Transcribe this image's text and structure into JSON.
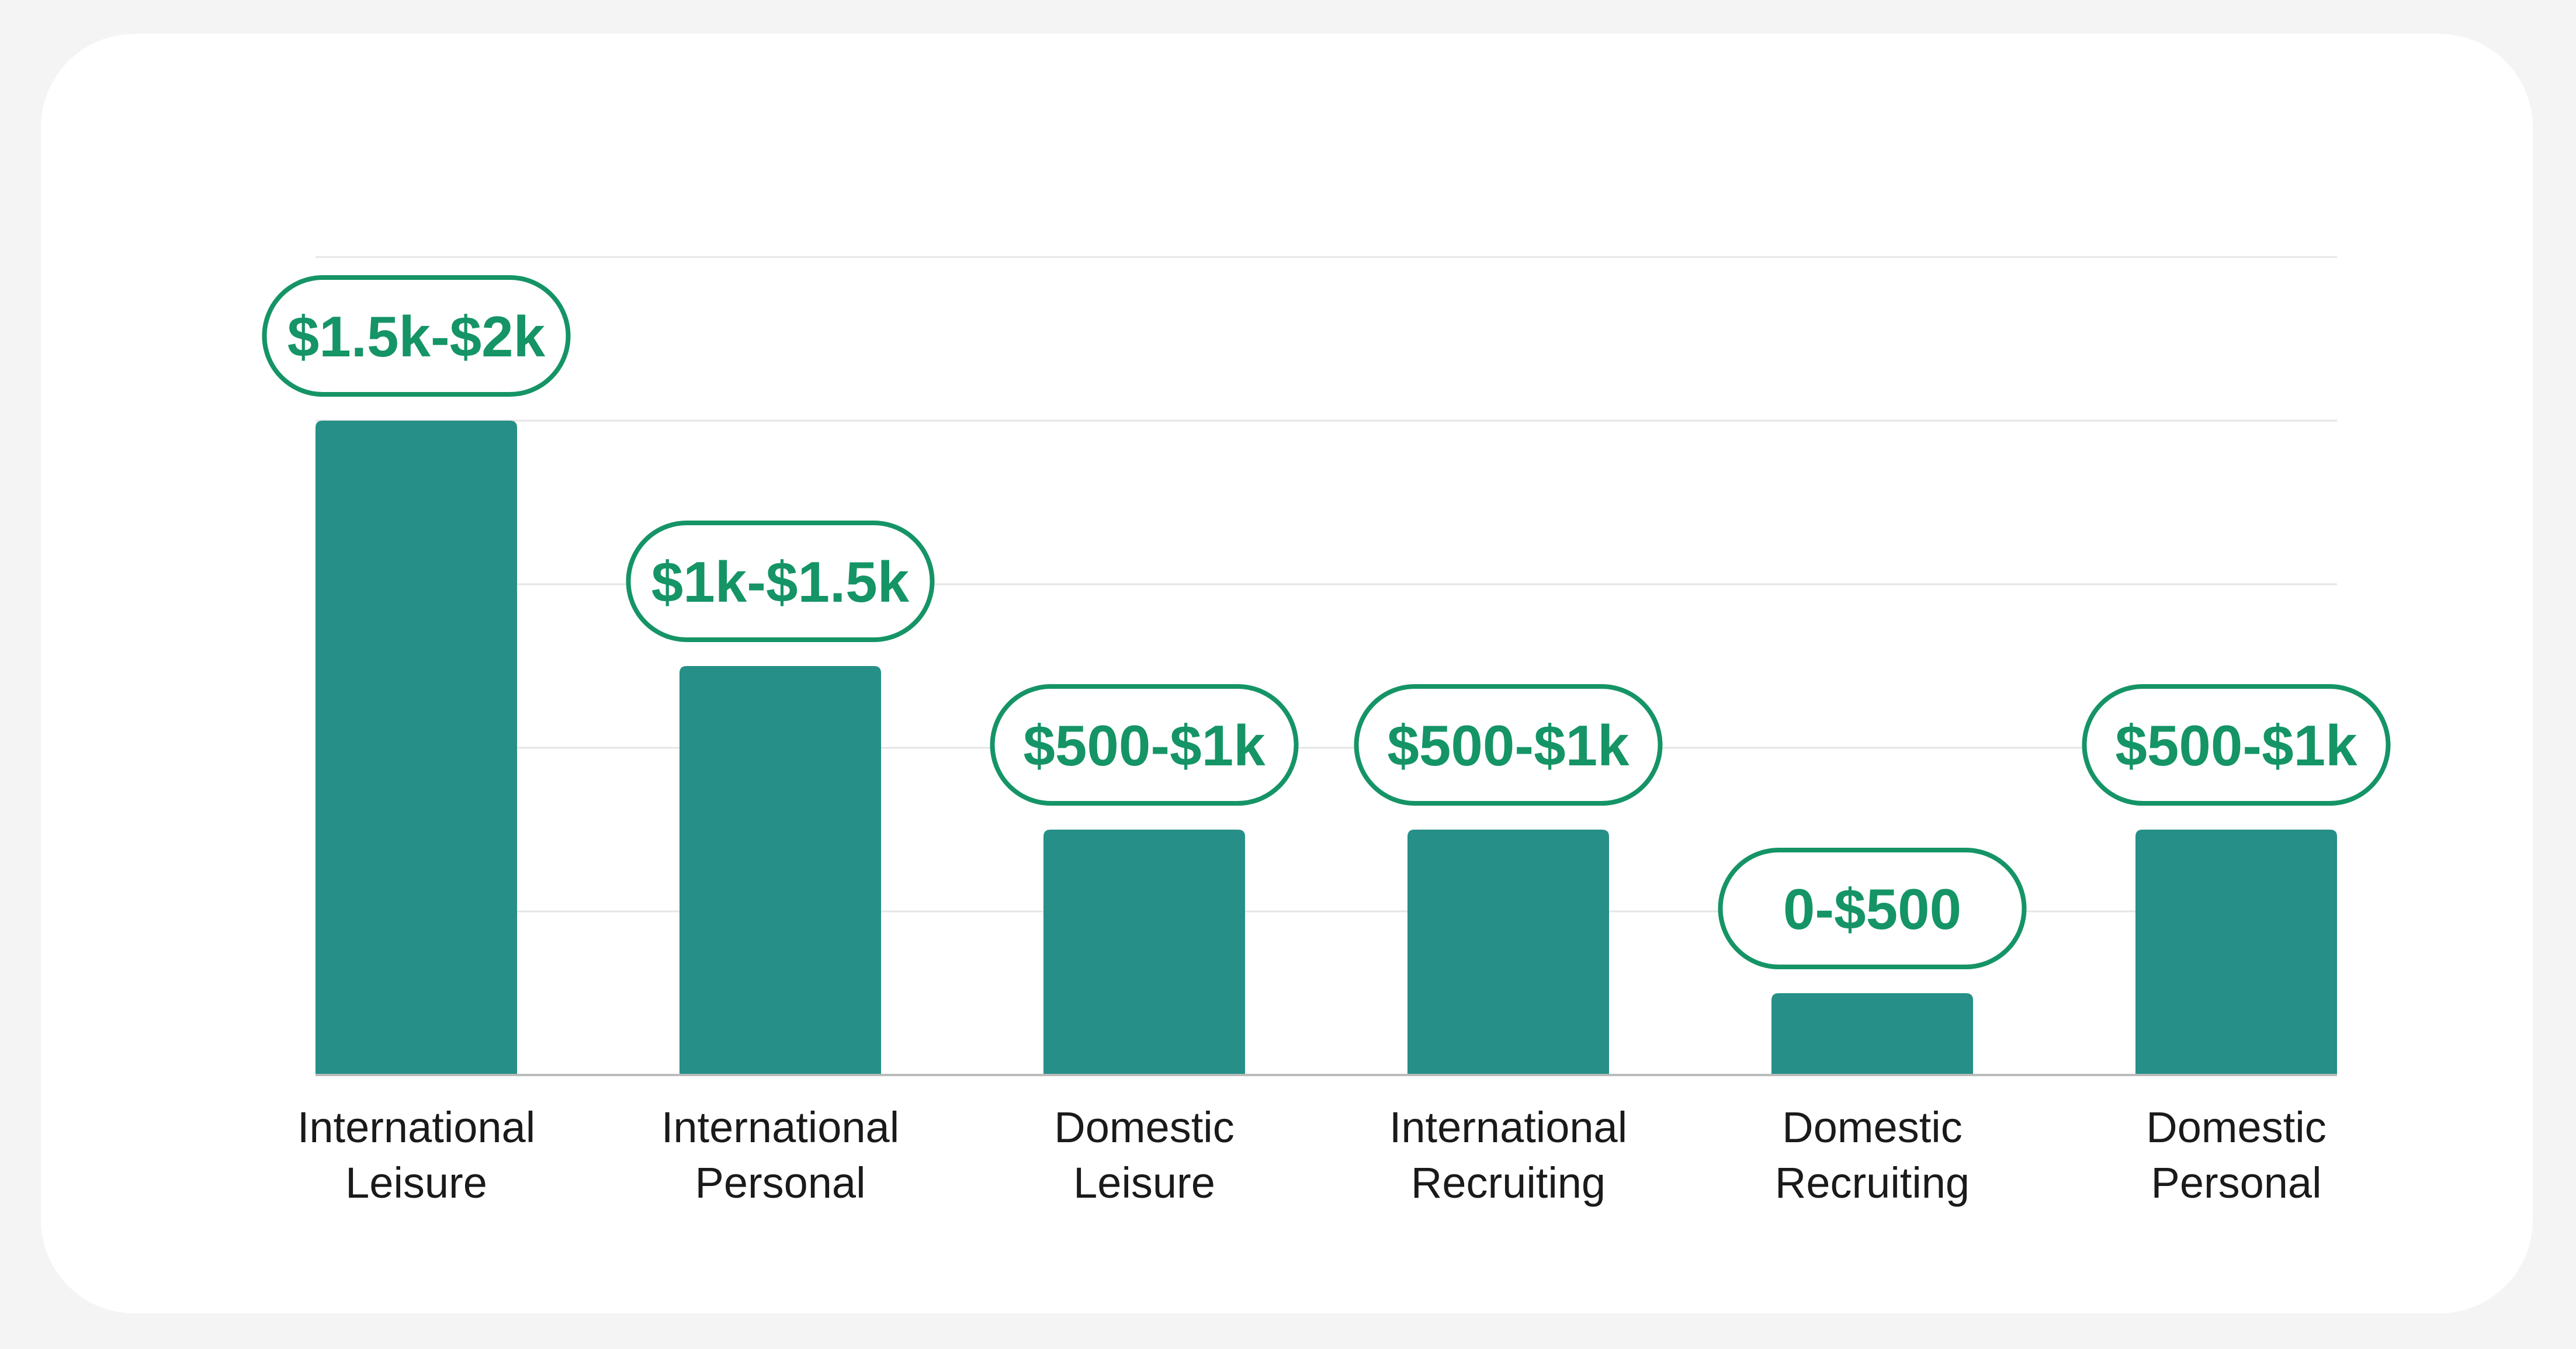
{
  "chart_data": {
    "type": "bar",
    "title": "",
    "xlabel": "",
    "ylabel": "",
    "categories": [
      [
        "International",
        "Leisure"
      ],
      [
        "International",
        "Personal"
      ],
      [
        "Domestic",
        "Leisure"
      ],
      [
        "International",
        "Recruiting"
      ],
      [
        "Domestic",
        "Recruiting"
      ],
      [
        "Domestic",
        "Personal"
      ]
    ],
    "values": [
      4,
      2.5,
      1.5,
      1.5,
      0.5,
      1.5
    ],
    "data_labels": [
      "$1.5k-$2k",
      "$1k-$1.5k",
      "$500-$1k",
      "$500-$1k",
      "0-$500",
      "$500-$1k"
    ],
    "ylim": [
      0,
      5
    ],
    "grid": true,
    "colors": {
      "bar": "#268f87",
      "label_text": "#159466",
      "pill_border": "#159466",
      "grid": "#e4e6e5",
      "axis": "#b9bcbb"
    }
  }
}
